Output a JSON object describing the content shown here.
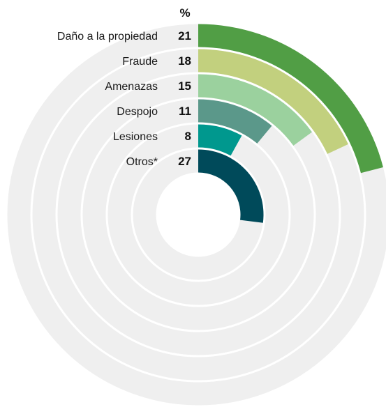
{
  "chart_data": {
    "type": "radial-bar",
    "unit_label": "%",
    "max_value": 100,
    "categories": [
      "Daño a la propiedad",
      "Fraude",
      "Amenazas",
      "Despojo",
      "Lesiones",
      "Otros*"
    ],
    "values": [
      21,
      18,
      15,
      11,
      8,
      27
    ],
    "colors": [
      "#519e45",
      "#c2d07e",
      "#9bd19e",
      "#5b988a",
      "#00988e",
      "#004a5a"
    ],
    "track_color": "#efefef"
  }
}
